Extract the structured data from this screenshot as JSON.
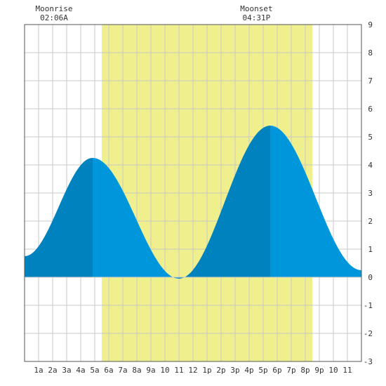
{
  "moon_events": [
    {
      "label": "Moonrise",
      "time": "02:06A",
      "hour": 2.1
    },
    {
      "label": "Moonset",
      "time": "04:31P",
      "hour": 16.52
    }
  ],
  "daylight": {
    "start_hour": 5.5,
    "end_hour": 20.5
  },
  "colors": {
    "background": "#ffffff",
    "daylight": "#f0ef8e",
    "grid": "#c8c8c8",
    "frame": "#555555",
    "rising_tide": "#0082be",
    "falling_tide": "#0096dc"
  },
  "chart_data": {
    "type": "area",
    "title": "",
    "xlabel": "",
    "ylabel": "",
    "xlim": [
      0,
      24
    ],
    "ylim": [
      -3,
      9
    ],
    "grid": true,
    "x_ticks": [
      {
        "x": 1,
        "label": "1a"
      },
      {
        "x": 2,
        "label": "2a"
      },
      {
        "x": 3,
        "label": "3a"
      },
      {
        "x": 4,
        "label": "4a"
      },
      {
        "x": 5,
        "label": "5a"
      },
      {
        "x": 6,
        "label": "6a"
      },
      {
        "x": 7,
        "label": "7a"
      },
      {
        "x": 8,
        "label": "8a"
      },
      {
        "x": 9,
        "label": "9a"
      },
      {
        "x": 10,
        "label": "10"
      },
      {
        "x": 11,
        "label": "11"
      },
      {
        "x": 12,
        "label": "12"
      },
      {
        "x": 13,
        "label": "1p"
      },
      {
        "x": 14,
        "label": "2p"
      },
      {
        "x": 15,
        "label": "3p"
      },
      {
        "x": 16,
        "label": "4p"
      },
      {
        "x": 17,
        "label": "5p"
      },
      {
        "x": 18,
        "label": "6p"
      },
      {
        "x": 19,
        "label": "7p"
      },
      {
        "x": 20,
        "label": "8p"
      },
      {
        "x": 21,
        "label": "9p"
      },
      {
        "x": 22,
        "label": "10"
      },
      {
        "x": 23,
        "label": "11"
      }
    ],
    "y_ticks": [
      -3,
      -2,
      -1,
      0,
      1,
      2,
      3,
      4,
      5,
      6,
      7,
      8,
      9
    ],
    "tide_extremes": [
      {
        "type": "start",
        "hour": 0.0,
        "height": 0.75
      },
      {
        "type": "high",
        "hour": 4.85,
        "height": 4.25
      },
      {
        "type": "low",
        "hour": 11.0,
        "height": -0.05
      },
      {
        "type": "high",
        "hour": 17.5,
        "height": 5.4
      },
      {
        "type": "end",
        "hour": 24.0,
        "height": 0.25
      }
    ]
  }
}
